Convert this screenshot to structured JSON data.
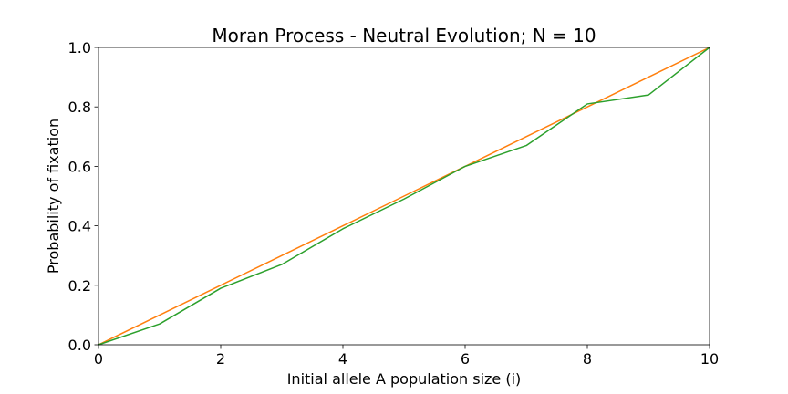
{
  "chart_data": {
    "type": "line",
    "title": "Moran Process - Neutral Evolution; N = 10",
    "xlabel": "Initial allele A population size (i)",
    "ylabel": "Probability of fixation",
    "xlim": [
      0,
      10
    ],
    "ylim": [
      0,
      1
    ],
    "xticks": [
      0,
      2,
      4,
      6,
      8,
      10
    ],
    "yticks": [
      0.0,
      0.2,
      0.4,
      0.6,
      0.8,
      1.0
    ],
    "xtick_labels": [
      "0",
      "2",
      "4",
      "6",
      "8",
      "10"
    ],
    "ytick_labels": [
      "0.0",
      "0.2",
      "0.4",
      "0.6",
      "0.8",
      "1.0"
    ],
    "grid": false,
    "series": [
      {
        "color": "#ff7f0e",
        "x": [
          0,
          1,
          2,
          3,
          4,
          5,
          6,
          7,
          8,
          9,
          10
        ],
        "y": [
          0.0,
          0.1,
          0.2,
          0.3,
          0.4,
          0.5,
          0.6,
          0.7,
          0.8,
          0.9,
          1.0
        ]
      },
      {
        "color": "#2ca02c",
        "x": [
          0,
          1,
          2,
          3,
          4,
          5,
          6,
          7,
          8,
          9,
          10
        ],
        "y": [
          0.0,
          0.07,
          0.19,
          0.27,
          0.39,
          0.49,
          0.6,
          0.67,
          0.81,
          0.84,
          1.0
        ]
      }
    ]
  }
}
